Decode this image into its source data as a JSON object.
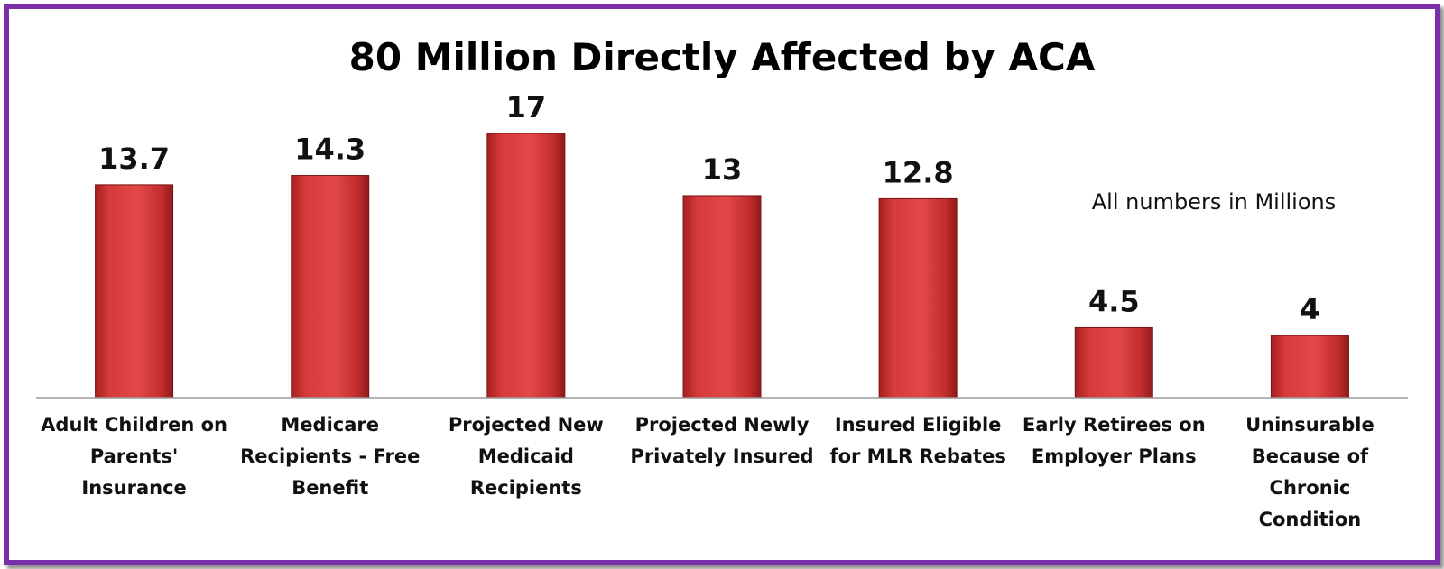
{
  "chart_data": {
    "type": "bar",
    "title": "80 Million Directly Affected by ACA",
    "annotation": "All numbers in Millions",
    "categories": [
      "Adult Children on Parents' Insurance",
      "Medicare Recipients - Free Benefit",
      "Projected New Medicaid Recipients",
      "Projected Newly Privately Insured",
      "Insured Eligible for MLR Rebates",
      "Early Retirees on Employer Plans",
      "Uninsurable Because of Chronic Condition"
    ],
    "category_lines": [
      [
        "Adult Children on",
        "Parents'",
        "Insurance"
      ],
      [
        "Medicare",
        "Recipients - Free",
        "Benefit"
      ],
      [
        "Projected New",
        "Medicaid",
        "Recipients"
      ],
      [
        "Projected Newly",
        "Privately Insured"
      ],
      [
        "Insured Eligible",
        "for MLR Rebates"
      ],
      [
        "Early Retirees on",
        "Employer Plans"
      ],
      [
        "Uninsurable",
        "Because of",
        "Chronic",
        "Condition"
      ]
    ],
    "values": [
      13.7,
      14.3,
      17,
      13,
      12.8,
      4.5,
      4
    ],
    "value_labels": [
      "13.7",
      "14.3",
      "17",
      "13",
      "12.8",
      "4.5",
      "4"
    ],
    "ylim": [
      0,
      17
    ],
    "bar_color": "#d93a3a",
    "grid": false
  }
}
